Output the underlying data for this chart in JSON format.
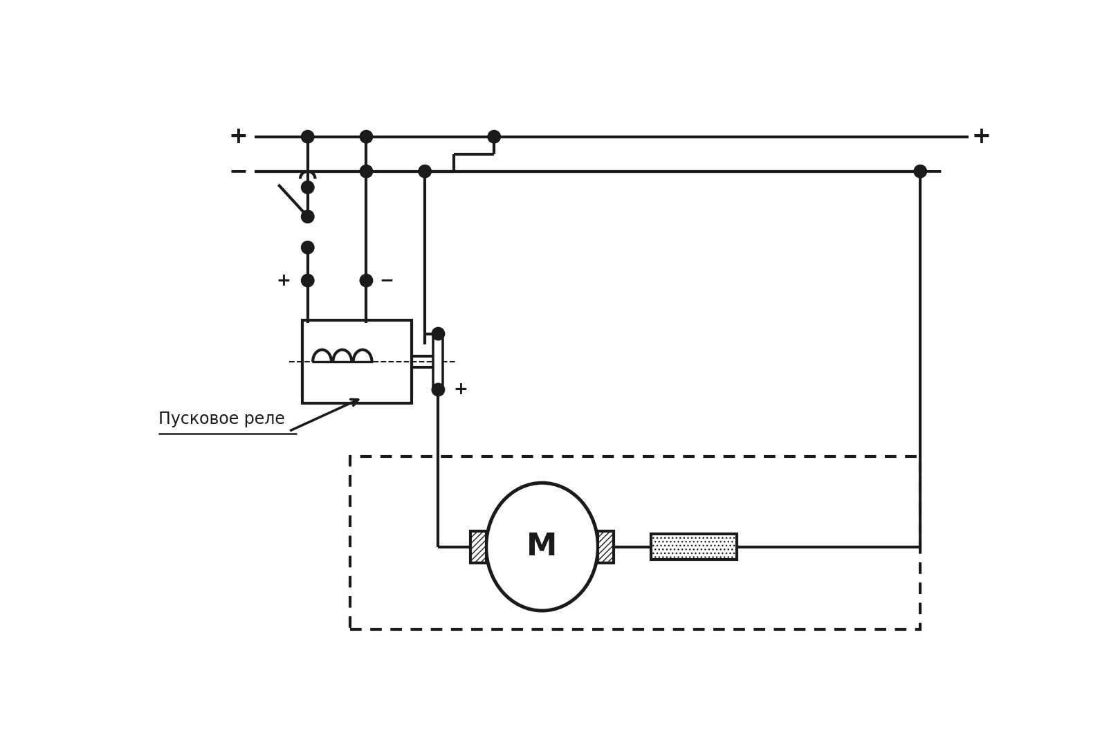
{
  "bg_color": "#ffffff",
  "line_color": "#1a1a1a",
  "lw": 3.0,
  "figsize": [
    16.16,
    10.7
  ],
  "dpi": 100,
  "label_pusk": "Пусковое реле",
  "plus": "+",
  "minus": "−",
  "M_label": "M"
}
